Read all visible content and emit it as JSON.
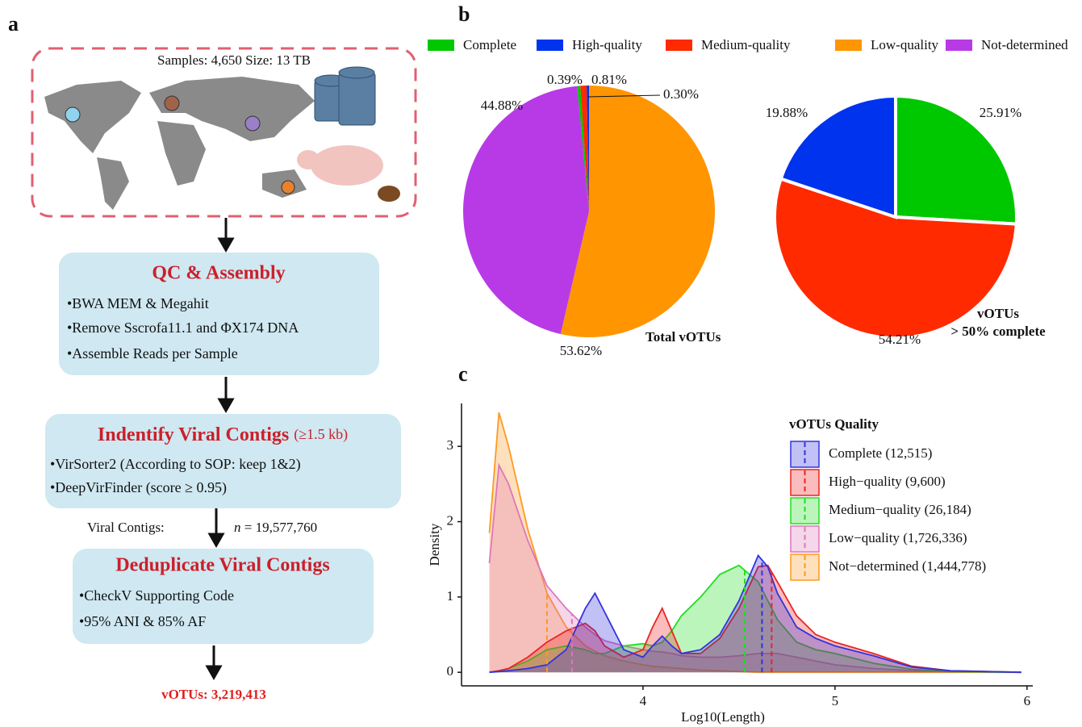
{
  "panels": [
    "a",
    "b",
    "c"
  ],
  "flowchart": {
    "samples": "Samples: 4,650 Size: 13 TB",
    "steps": [
      {
        "title": "QC & Assembly",
        "items": [
          "•BWA MEM & Megahit",
          "•Remove Sscrofa11.1 and ΦX174 DNA",
          "•Assemble Reads per Sample"
        ]
      },
      {
        "title": "Indentify Viral Contigs",
        "note": "(≥1.5 kb)",
        "items": [
          "•VirSorter2 (According to SOP: keep 1&2)",
          "•DeepVirFinder (score ≥ 0.95)"
        ]
      },
      {
        "title": "Deduplicate Viral Contigs",
        "items": [
          "•CheckV Supporting Code",
          "•95% ANI & 85% AF"
        ]
      }
    ],
    "count_label": "Viral Contigs:",
    "count_symbol": "n",
    "count_value": "= 19,577,760",
    "result": "vOTUs: 3,219,413"
  },
  "chart_data": [
    {
      "type": "pie",
      "title": [
        "Total vOTUs"
      ],
      "categories": [
        "Complete",
        "High-quality",
        "Medium-quality",
        "Low-quality",
        "Not-determined"
      ],
      "colors": [
        "#00c800",
        "#0033ee",
        "#ff2a00",
        "#ff9500",
        "#b83ae6"
      ],
      "values": [
        0.39,
        0.3,
        0.81,
        53.62,
        44.88
      ],
      "value_labels": [
        "0.39%",
        "0.30%",
        "0.81%",
        "53.62%",
        "44.88%"
      ]
    },
    {
      "type": "pie",
      "title": [
        "vOTUs",
        "> 50% complete"
      ],
      "colors": [
        "#00c800",
        "#ff2a00",
        "#0033ee"
      ],
      "values": [
        25.91,
        54.21,
        19.88
      ],
      "value_labels": [
        "25.91%",
        "54.21%",
        "19.88%"
      ]
    },
    {
      "type": "density",
      "x_label": "Log10(Length)",
      "y_label": "Density",
      "legend_title": "vOTUs Quality",
      "xlim": [
        3.055,
        6.03
      ],
      "ylim": [
        -0.18,
        3.57
      ],
      "xticks": [
        4,
        5,
        6
      ],
      "yticks": [
        0,
        1,
        2,
        3
      ],
      "x": [
        3.2,
        3.25,
        3.3,
        3.4,
        3.5,
        3.6,
        3.7,
        3.75,
        3.8,
        3.9,
        4.0,
        4.05,
        4.1,
        4.15,
        4.2,
        4.3,
        4.4,
        4.5,
        4.6,
        4.65,
        4.7,
        4.8,
        4.9,
        5.0,
        5.2,
        5.4,
        5.6,
        5.97
      ],
      "series": [
        {
          "name": "Complete (12,515)",
          "color": "#3333dd",
          "mean": 4.62,
          "values": [
            0,
            0.01,
            0.02,
            0.05,
            0.1,
            0.3,
            0.85,
            1.05,
            0.8,
            0.3,
            0.2,
            0.35,
            0.48,
            0.35,
            0.25,
            0.3,
            0.5,
            0.95,
            1.55,
            1.4,
            1.05,
            0.6,
            0.45,
            0.35,
            0.22,
            0.07,
            0.02,
            0
          ]
        },
        {
          "name": "High−quality (9,600)",
          "color": "#ee2222",
          "mean": 4.67,
          "values": [
            0,
            0.02,
            0.05,
            0.2,
            0.4,
            0.55,
            0.65,
            0.55,
            0.35,
            0.2,
            0.3,
            0.6,
            0.85,
            0.55,
            0.25,
            0.25,
            0.45,
            0.85,
            1.4,
            1.42,
            1.2,
            0.75,
            0.5,
            0.4,
            0.25,
            0.08,
            0.02,
            0
          ]
        },
        {
          "name": "Medium−quality (26,184)",
          "color": "#22dd22",
          "mean": 4.53,
          "values": [
            0,
            0.02,
            0.05,
            0.15,
            0.3,
            0.35,
            0.3,
            0.25,
            0.25,
            0.35,
            0.38,
            0.35,
            0.4,
            0.55,
            0.75,
            1.0,
            1.3,
            1.42,
            1.2,
            0.95,
            0.7,
            0.4,
            0.3,
            0.25,
            0.12,
            0.04,
            0.01,
            0
          ]
        },
        {
          "name": "Low−quality (1,726,336)",
          "color": "#dd77bb",
          "mean": 3.63,
          "values": [
            1.45,
            2.75,
            2.5,
            1.75,
            1.15,
            0.85,
            0.6,
            0.5,
            0.42,
            0.35,
            0.3,
            0.28,
            0.27,
            0.25,
            0.22,
            0.2,
            0.2,
            0.22,
            0.25,
            0.25,
            0.25,
            0.2,
            0.15,
            0.1,
            0.05,
            0.02,
            0.01,
            0
          ]
        },
        {
          "name": "Not−determined (1,444,778)",
          "color": "#ff9922",
          "mean": 3.5,
          "values": [
            1.85,
            3.45,
            3.0,
            1.9,
            1.05,
            0.6,
            0.35,
            0.28,
            0.22,
            0.15,
            0.1,
            0.08,
            0.07,
            0.06,
            0.05,
            0.03,
            0.02,
            0.01,
            0,
            0,
            0,
            0,
            0,
            0,
            0,
            0,
            0,
            0
          ]
        }
      ]
    }
  ]
}
